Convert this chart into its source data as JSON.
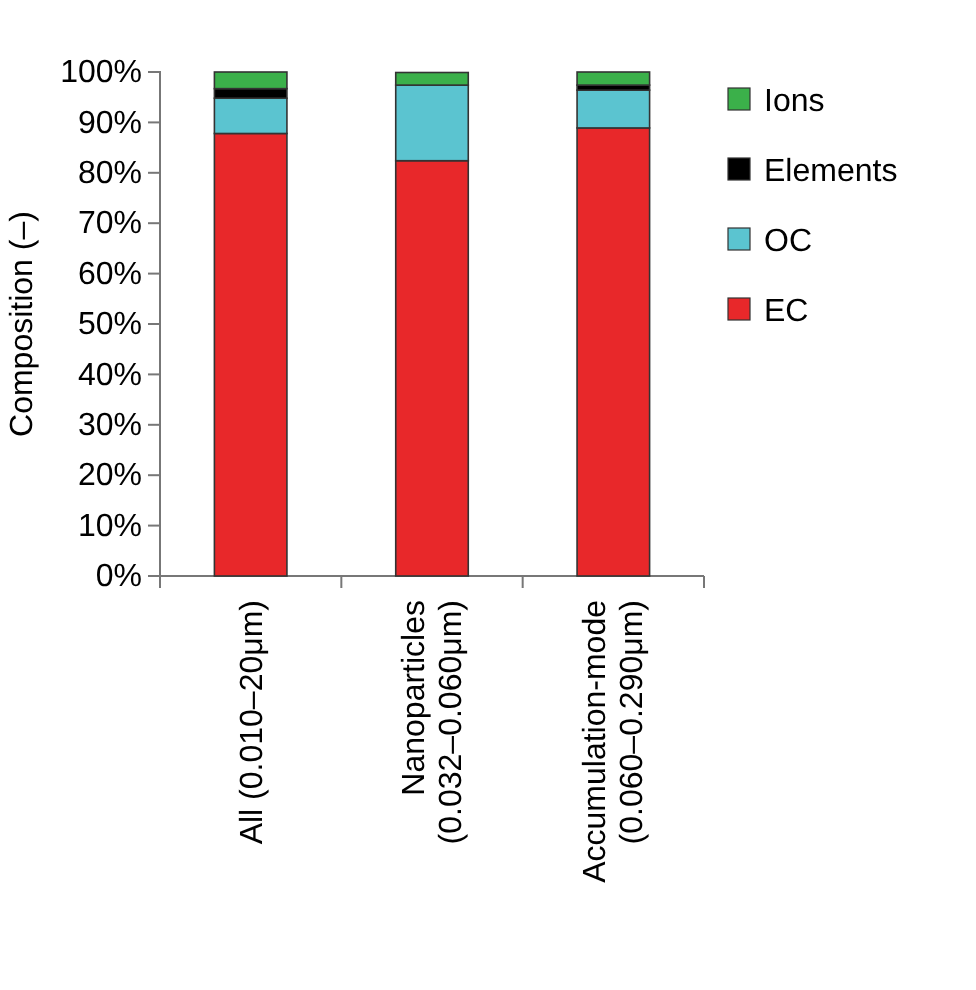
{
  "chart_data": {
    "type": "bar",
    "stacked": true,
    "ylabel": "Composition (–)",
    "categories": [
      "All (0.010–20μm)",
      "Nanoparticles (0.032–0.060μm)",
      "Accumulation-mode (0.060–0.290μm)"
    ],
    "series": [
      {
        "name": "EC",
        "color": "#e8282a",
        "values": [
          87.8,
          82.4,
          88.9
        ]
      },
      {
        "name": "OC",
        "color": "#5bc4d0",
        "values": [
          7.0,
          15.0,
          7.5
        ]
      },
      {
        "name": "Elements",
        "color": "#000000",
        "values": [
          1.9,
          null,
          1.0
        ]
      },
      {
        "name": "Ions",
        "color": "#3bb04a",
        "values": [
          3.3,
          2.5,
          2.6
        ]
      }
    ],
    "ylim": [
      0,
      100
    ],
    "yticks": [
      {
        "value": 0,
        "label": "0%"
      },
      {
        "value": 10,
        "label": "10%"
      },
      {
        "value": 20,
        "label": "20%"
      },
      {
        "value": 30,
        "label": "30%"
      },
      {
        "value": 40,
        "label": "40%"
      },
      {
        "value": 50,
        "label": "50%"
      },
      {
        "value": 60,
        "label": "60%"
      },
      {
        "value": 70,
        "label": "70%"
      },
      {
        "value": 80,
        "label": "80%"
      },
      {
        "value": 90,
        "label": "90%"
      },
      {
        "value": 100,
        "label": "100%"
      }
    ],
    "legend": "right"
  }
}
